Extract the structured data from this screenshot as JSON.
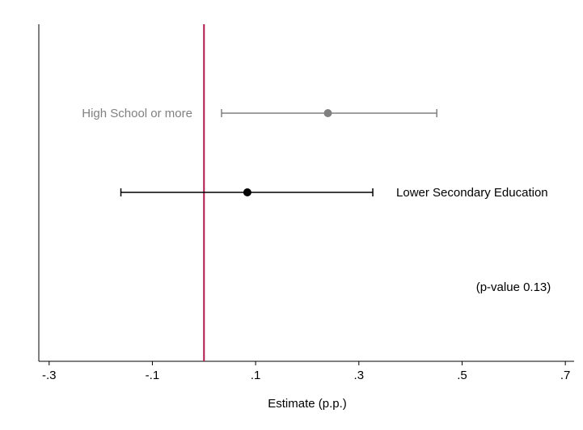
{
  "chart_data": {
    "type": "coefplot",
    "series": [
      {
        "name": "High School or more",
        "color": "#808080",
        "values": [
          0.24
        ],
        "lower": [
          0.034
        ],
        "upper": [
          0.451
        ]
      },
      {
        "name": "Lower Secondary Education",
        "color": "#000000",
        "values": [
          0.084
        ],
        "lower": [
          -0.161
        ],
        "upper": [
          0.327
        ]
      }
    ],
    "xlim": [
      -0.32,
      0.717
    ],
    "xticks": [
      {
        "value": -0.3,
        "label": "-.3"
      },
      {
        "value": -0.1,
        "label": "-.1"
      },
      {
        "value": 0.1,
        "label": ".1"
      },
      {
        "value": 0.3,
        "label": ".3"
      },
      {
        "value": 0.5,
        "label": ".5"
      },
      {
        "value": 0.7,
        "label": ".7"
      }
    ],
    "xlabel": "Estimate (p.p.)",
    "reference_line": 0,
    "reference_color": "#b0184a",
    "annotation": "(p-value 0.13)"
  }
}
